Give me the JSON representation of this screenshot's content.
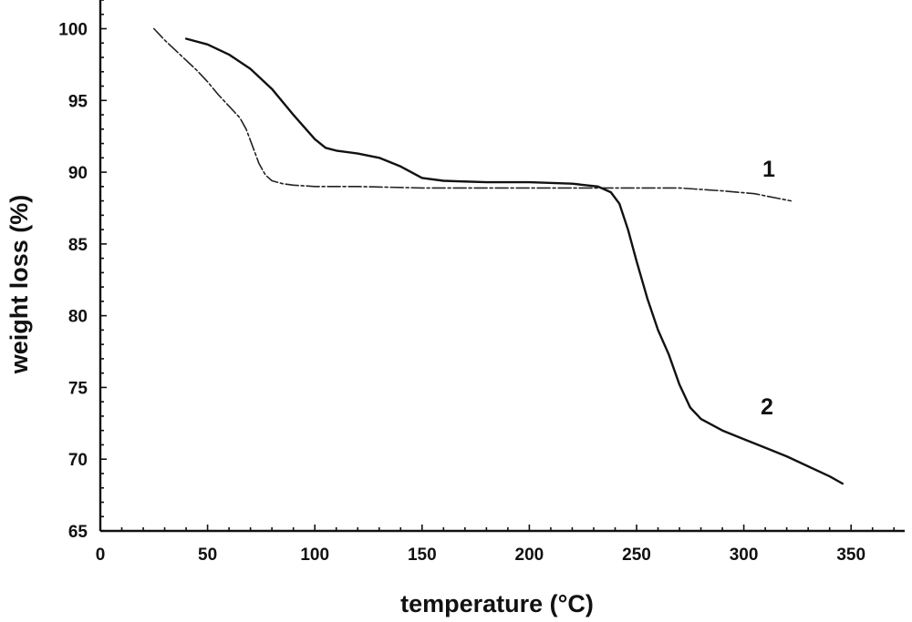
{
  "chart_data": {
    "type": "line",
    "xlabel": "temperature (°C)",
    "ylabel": "weight loss (%)",
    "xlim": [
      0,
      375
    ],
    "ylim": [
      65,
      102
    ],
    "xticks": [
      0,
      50,
      100,
      150,
      200,
      250,
      300,
      350
    ],
    "yticks": [
      65,
      70,
      75,
      80,
      85,
      90,
      95,
      100
    ],
    "grid": false,
    "legend": "none",
    "series": [
      {
        "name": "1",
        "style": "dash-dot",
        "points": [
          [
            25,
            100.0
          ],
          [
            30,
            99.2
          ],
          [
            35,
            98.5
          ],
          [
            40,
            97.8
          ],
          [
            45,
            97.1
          ],
          [
            50,
            96.3
          ],
          [
            55,
            95.4
          ],
          [
            60,
            94.6
          ],
          [
            65,
            93.8
          ],
          [
            68,
            93.0
          ],
          [
            71,
            91.8
          ],
          [
            74,
            90.6
          ],
          [
            77,
            89.8
          ],
          [
            80,
            89.4
          ],
          [
            85,
            89.2
          ],
          [
            90,
            89.1
          ],
          [
            100,
            89.0
          ],
          [
            120,
            89.0
          ],
          [
            150,
            88.9
          ],
          [
            200,
            88.9
          ],
          [
            230,
            88.9
          ],
          [
            250,
            88.9
          ],
          [
            270,
            88.9
          ],
          [
            290,
            88.7
          ],
          [
            305,
            88.5
          ],
          [
            315,
            88.2
          ],
          [
            322,
            88.0
          ]
        ]
      },
      {
        "name": "2",
        "style": "solid",
        "points": [
          [
            40,
            99.3
          ],
          [
            50,
            98.9
          ],
          [
            60,
            98.2
          ],
          [
            70,
            97.2
          ],
          [
            80,
            95.8
          ],
          [
            90,
            94.0
          ],
          [
            100,
            92.3
          ],
          [
            105,
            91.7
          ],
          [
            110,
            91.5
          ],
          [
            120,
            91.3
          ],
          [
            130,
            91.0
          ],
          [
            140,
            90.4
          ],
          [
            150,
            89.6
          ],
          [
            160,
            89.4
          ],
          [
            180,
            89.3
          ],
          [
            200,
            89.3
          ],
          [
            220,
            89.2
          ],
          [
            232,
            89.0
          ],
          [
            238,
            88.6
          ],
          [
            242,
            87.8
          ],
          [
            246,
            86.0
          ],
          [
            250,
            83.8
          ],
          [
            255,
            81.2
          ],
          [
            260,
            79.0
          ],
          [
            265,
            77.3
          ],
          [
            270,
            75.2
          ],
          [
            275,
            73.6
          ],
          [
            280,
            72.8
          ],
          [
            290,
            72.0
          ],
          [
            300,
            71.4
          ],
          [
            310,
            70.8
          ],
          [
            320,
            70.2
          ],
          [
            330,
            69.5
          ],
          [
            340,
            68.8
          ],
          [
            346,
            68.3
          ]
        ]
      }
    ],
    "curve_labels": [
      {
        "text": "1",
        "series": "1"
      },
      {
        "text": "2",
        "series": "2"
      }
    ]
  }
}
